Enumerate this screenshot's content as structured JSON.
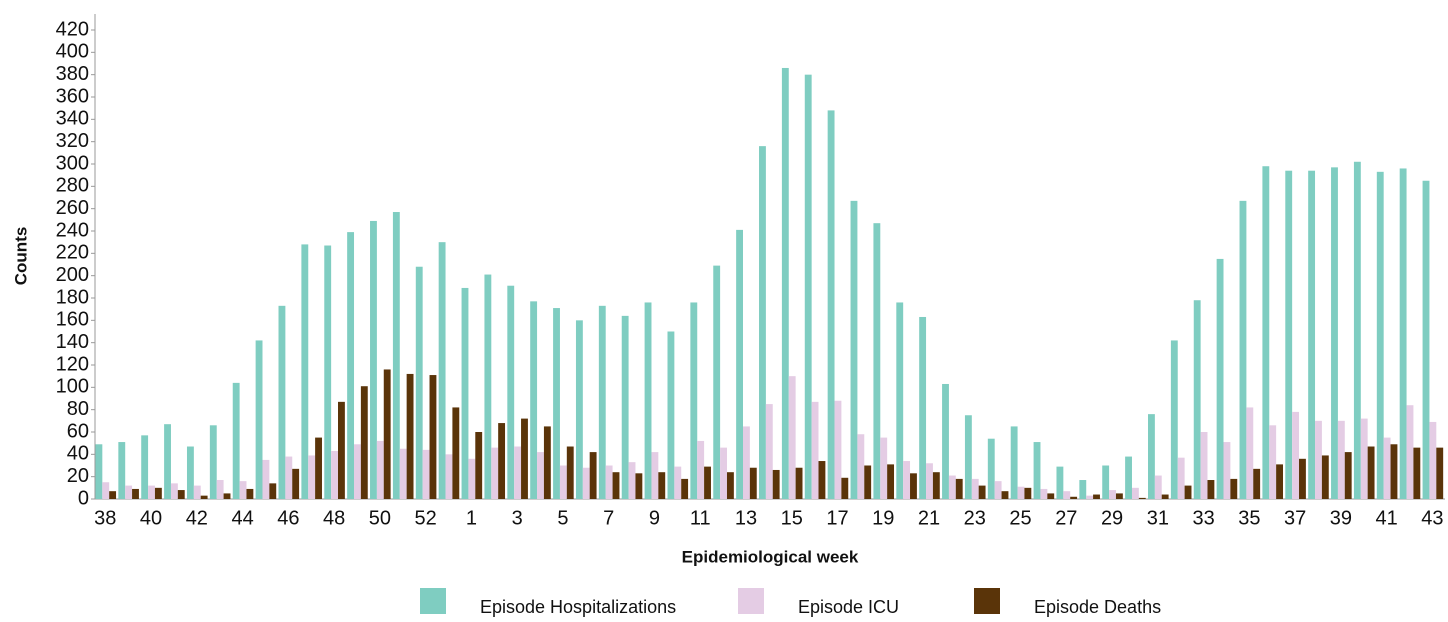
{
  "chart_data": {
    "type": "bar",
    "x_label": "Epidemiological week",
    "y_label": "Counts",
    "categories": [
      "38",
      null,
      "40",
      null,
      "42",
      null,
      "44",
      null,
      "46",
      null,
      "48",
      null,
      "50",
      null,
      "52",
      null,
      "1",
      null,
      "3",
      null,
      "5",
      null,
      "7",
      null,
      "9",
      null,
      "11",
      null,
      "13",
      null,
      "15",
      null,
      "17",
      null,
      "19",
      null,
      "21",
      null,
      "23",
      null,
      "25",
      null,
      "27",
      null,
      "29",
      null,
      "31",
      null,
      "33",
      null,
      "35",
      null,
      "37",
      null,
      "39",
      null,
      "41",
      null,
      "43"
    ],
    "series": [
      {
        "name": "Episode Hospitalizations",
        "color": "#7fcdc1",
        "values": [
          49,
          51,
          57,
          67,
          47,
          66,
          104,
          142,
          173,
          228,
          227,
          239,
          249,
          257,
          208,
          230,
          189,
          201,
          191,
          177,
          171,
          160,
          173,
          164,
          176,
          150,
          176,
          209,
          241,
          316,
          386,
          380,
          348,
          267,
          247,
          176,
          163,
          103,
          75,
          54,
          65,
          51,
          29,
          17,
          30,
          38,
          76,
          142,
          178,
          215,
          267,
          298,
          294,
          294,
          297,
          302,
          293,
          296,
          285
        ]
      },
      {
        "name": "Episode ICU",
        "color": "#e4cce4",
        "values": [
          15,
          12,
          12,
          14,
          12,
          17,
          16,
          35,
          38,
          39,
          43,
          49,
          52,
          45,
          44,
          40,
          36,
          46,
          47,
          42,
          30,
          28,
          30,
          33,
          42,
          29,
          52,
          46,
          65,
          85,
          110,
          87,
          88,
          58,
          55,
          34,
          32,
          21,
          18,
          16,
          11,
          9,
          7,
          3,
          8,
          10,
          21,
          37,
          60,
          51,
          82,
          66,
          78,
          70,
          70,
          72,
          55,
          84,
          69
        ]
      },
      {
        "name": "Episode Deaths",
        "color": "#5a3409",
        "values": [
          7,
          9,
          10,
          8,
          3,
          5,
          9,
          14,
          27,
          55,
          87,
          101,
          116,
          112,
          111,
          82,
          60,
          68,
          72,
          65,
          47,
          42,
          24,
          23,
          24,
          18,
          29,
          24,
          28,
          26,
          28,
          34,
          19,
          30,
          31,
          23,
          24,
          18,
          12,
          7,
          10,
          5,
          2,
          4,
          5,
          1,
          4,
          12,
          17,
          18,
          27,
          31,
          36,
          39,
          42,
          47,
          49,
          46,
          46
        ]
      }
    ],
    "ylim": [
      0,
      420
    ],
    "yticks": [
      0,
      20,
      40,
      60,
      80,
      100,
      120,
      140,
      160,
      180,
      200,
      220,
      240,
      260,
      280,
      300,
      320,
      340,
      360,
      380,
      400,
      420
    ],
    "grid": false
  }
}
